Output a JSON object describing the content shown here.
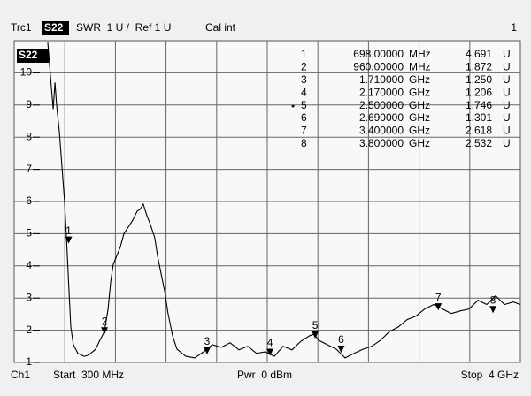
{
  "header": {
    "trace": "Trc1",
    "param": "S22",
    "format": "SWR  1 U /  Ref 1 U",
    "cal": "Cal int",
    "channel_num": "1"
  },
  "footer": {
    "channel": "Ch1",
    "start": "Start  300 MHz",
    "power": "Pwr  0 dBm",
    "stop": "Stop  4 GHz"
  },
  "chart_data": {
    "type": "line",
    "label": "S22",
    "color": "#000000",
    "grid": true,
    "xlim": [
      0.3,
      4
    ],
    "ylim": [
      1,
      11
    ],
    "yticks": [
      1,
      2,
      3,
      4,
      5,
      6,
      7,
      8,
      9,
      10
    ],
    "x": [
      0.546,
      0.572,
      0.585,
      0.598,
      0.61,
      0.63,
      0.649,
      0.669,
      0.682,
      0.701,
      0.714,
      0.733,
      0.766,
      0.811,
      0.843,
      0.895,
      0.927,
      0.96,
      0.986,
      1.005,
      1.024,
      1.05,
      1.076,
      1.102,
      1.134,
      1.167,
      1.199,
      1.219,
      1.244,
      1.27,
      1.296,
      1.328,
      1.348,
      1.374,
      1.4,
      1.425,
      1.458,
      1.49,
      1.555,
      1.62,
      1.684,
      1.749,
      1.814,
      1.878,
      1.943,
      2.008,
      2.072,
      2.137,
      2.202,
      2.266,
      2.331,
      2.396,
      2.46,
      2.493,
      2.525,
      2.59,
      2.655,
      2.719,
      2.784,
      2.849,
      2.913,
      2.978,
      3.043,
      3.107,
      3.172,
      3.237,
      3.301,
      3.366,
      3.431,
      3.495,
      3.56,
      3.625,
      3.69,
      3.754,
      3.819,
      3.884,
      3.948,
      4.0
    ],
    "values": [
      10.94,
      9.56,
      8.87,
      9.7,
      9.01,
      8.18,
      7.08,
      5.97,
      4.87,
      3.21,
      2.1,
      1.55,
      1.28,
      1.19,
      1.22,
      1.41,
      1.69,
      1.96,
      2.65,
      3.49,
      4.04,
      4.31,
      4.59,
      5.0,
      5.2,
      5.42,
      5.7,
      5.75,
      5.92,
      5.56,
      5.28,
      4.87,
      4.31,
      3.76,
      3.21,
      2.52,
      1.83,
      1.41,
      1.19,
      1.14,
      1.33,
      1.55,
      1.47,
      1.61,
      1.39,
      1.5,
      1.28,
      1.33,
      1.19,
      1.5,
      1.39,
      1.66,
      1.83,
      1.88,
      1.69,
      1.55,
      1.41,
      1.14,
      1.28,
      1.41,
      1.5,
      1.69,
      1.96,
      2.1,
      2.33,
      2.44,
      2.66,
      2.8,
      2.66,
      2.52,
      2.6,
      2.66,
      2.93,
      2.8,
      3.07,
      2.8,
      2.88,
      2.8
    ],
    "markers": [
      {
        "label": "1",
        "x": {
          "value": 0.698,
          "label": "698.00000"
        },
        "x_unit": "MHz",
        "value": 4.691,
        "unit": "U"
      },
      {
        "label": "2",
        "x": {
          "value": 0.96,
          "label": "960.00000"
        },
        "x_unit": "MHz",
        "value": 1.872,
        "unit": "U"
      },
      {
        "label": "3",
        "x": {
          "value": 1.71,
          "label": "1.710000"
        },
        "x_unit": "GHz",
        "value": 1.25,
        "value_label": "1.250",
        "unit": "U"
      },
      {
        "label": "4",
        "x": {
          "value": 2.17,
          "label": "2.170000"
        },
        "x_unit": "GHz",
        "value": 1.206,
        "unit": "U"
      },
      {
        "label": "5",
        "x": {
          "value": 2.5,
          "label": "2.500000"
        },
        "x_unit": "GHz",
        "value": 1.746,
        "unit": "U"
      },
      {
        "label": "6",
        "x": {
          "value": 2.69,
          "label": "2.690000"
        },
        "x_unit": "GHz",
        "value": 1.301,
        "unit": "U"
      },
      {
        "label": "7",
        "x": {
          "value": 3.4,
          "label": "3.400000"
        },
        "x_unit": "GHz",
        "value": 2.618,
        "unit": "U"
      },
      {
        "label": "8",
        "x": {
          "value": 3.8,
          "label": "3.800000"
        },
        "x_unit": "GHz",
        "value": 2.532,
        "unit": "U"
      }
    ]
  }
}
